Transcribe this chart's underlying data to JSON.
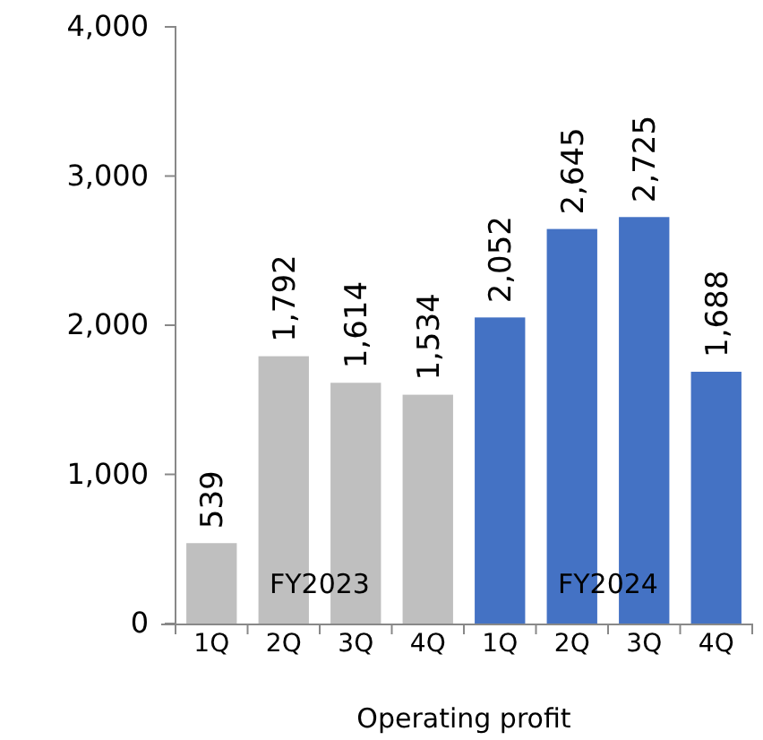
{
  "chart_data": {
    "type": "bar",
    "xlabel": "Operating profit",
    "categories": [
      "1Q",
      "2Q",
      "3Q",
      "4Q",
      "1Q",
      "2Q",
      "3Q",
      "4Q"
    ],
    "values": [
      539,
      1792,
      1614,
      1534,
      2052,
      2645,
      2725,
      1688
    ],
    "colors": [
      "#bfbfbf",
      "#bfbfbf",
      "#bfbfbf",
      "#bfbfbf",
      "#4472c4",
      "#4472c4",
      "#4472c4",
      "#4472c4"
    ],
    "ylim": [
      0,
      4000
    ],
    "yticks": [
      0,
      {
        "value": 1000,
        "label": "1,000"
      },
      {
        "value": 2000,
        "label": "2,000"
      },
      {
        "value": 3000,
        "label": "3,000"
      },
      {
        "value": 4000,
        "label": "4,000"
      }
    ],
    "value_labels": [
      "539",
      "1,792",
      "1,614",
      "1,534",
      "2,052",
      "2,645",
      "2,725",
      "1,688"
    ],
    "annotations": [
      "FY2023",
      "FY2024"
    ]
  }
}
